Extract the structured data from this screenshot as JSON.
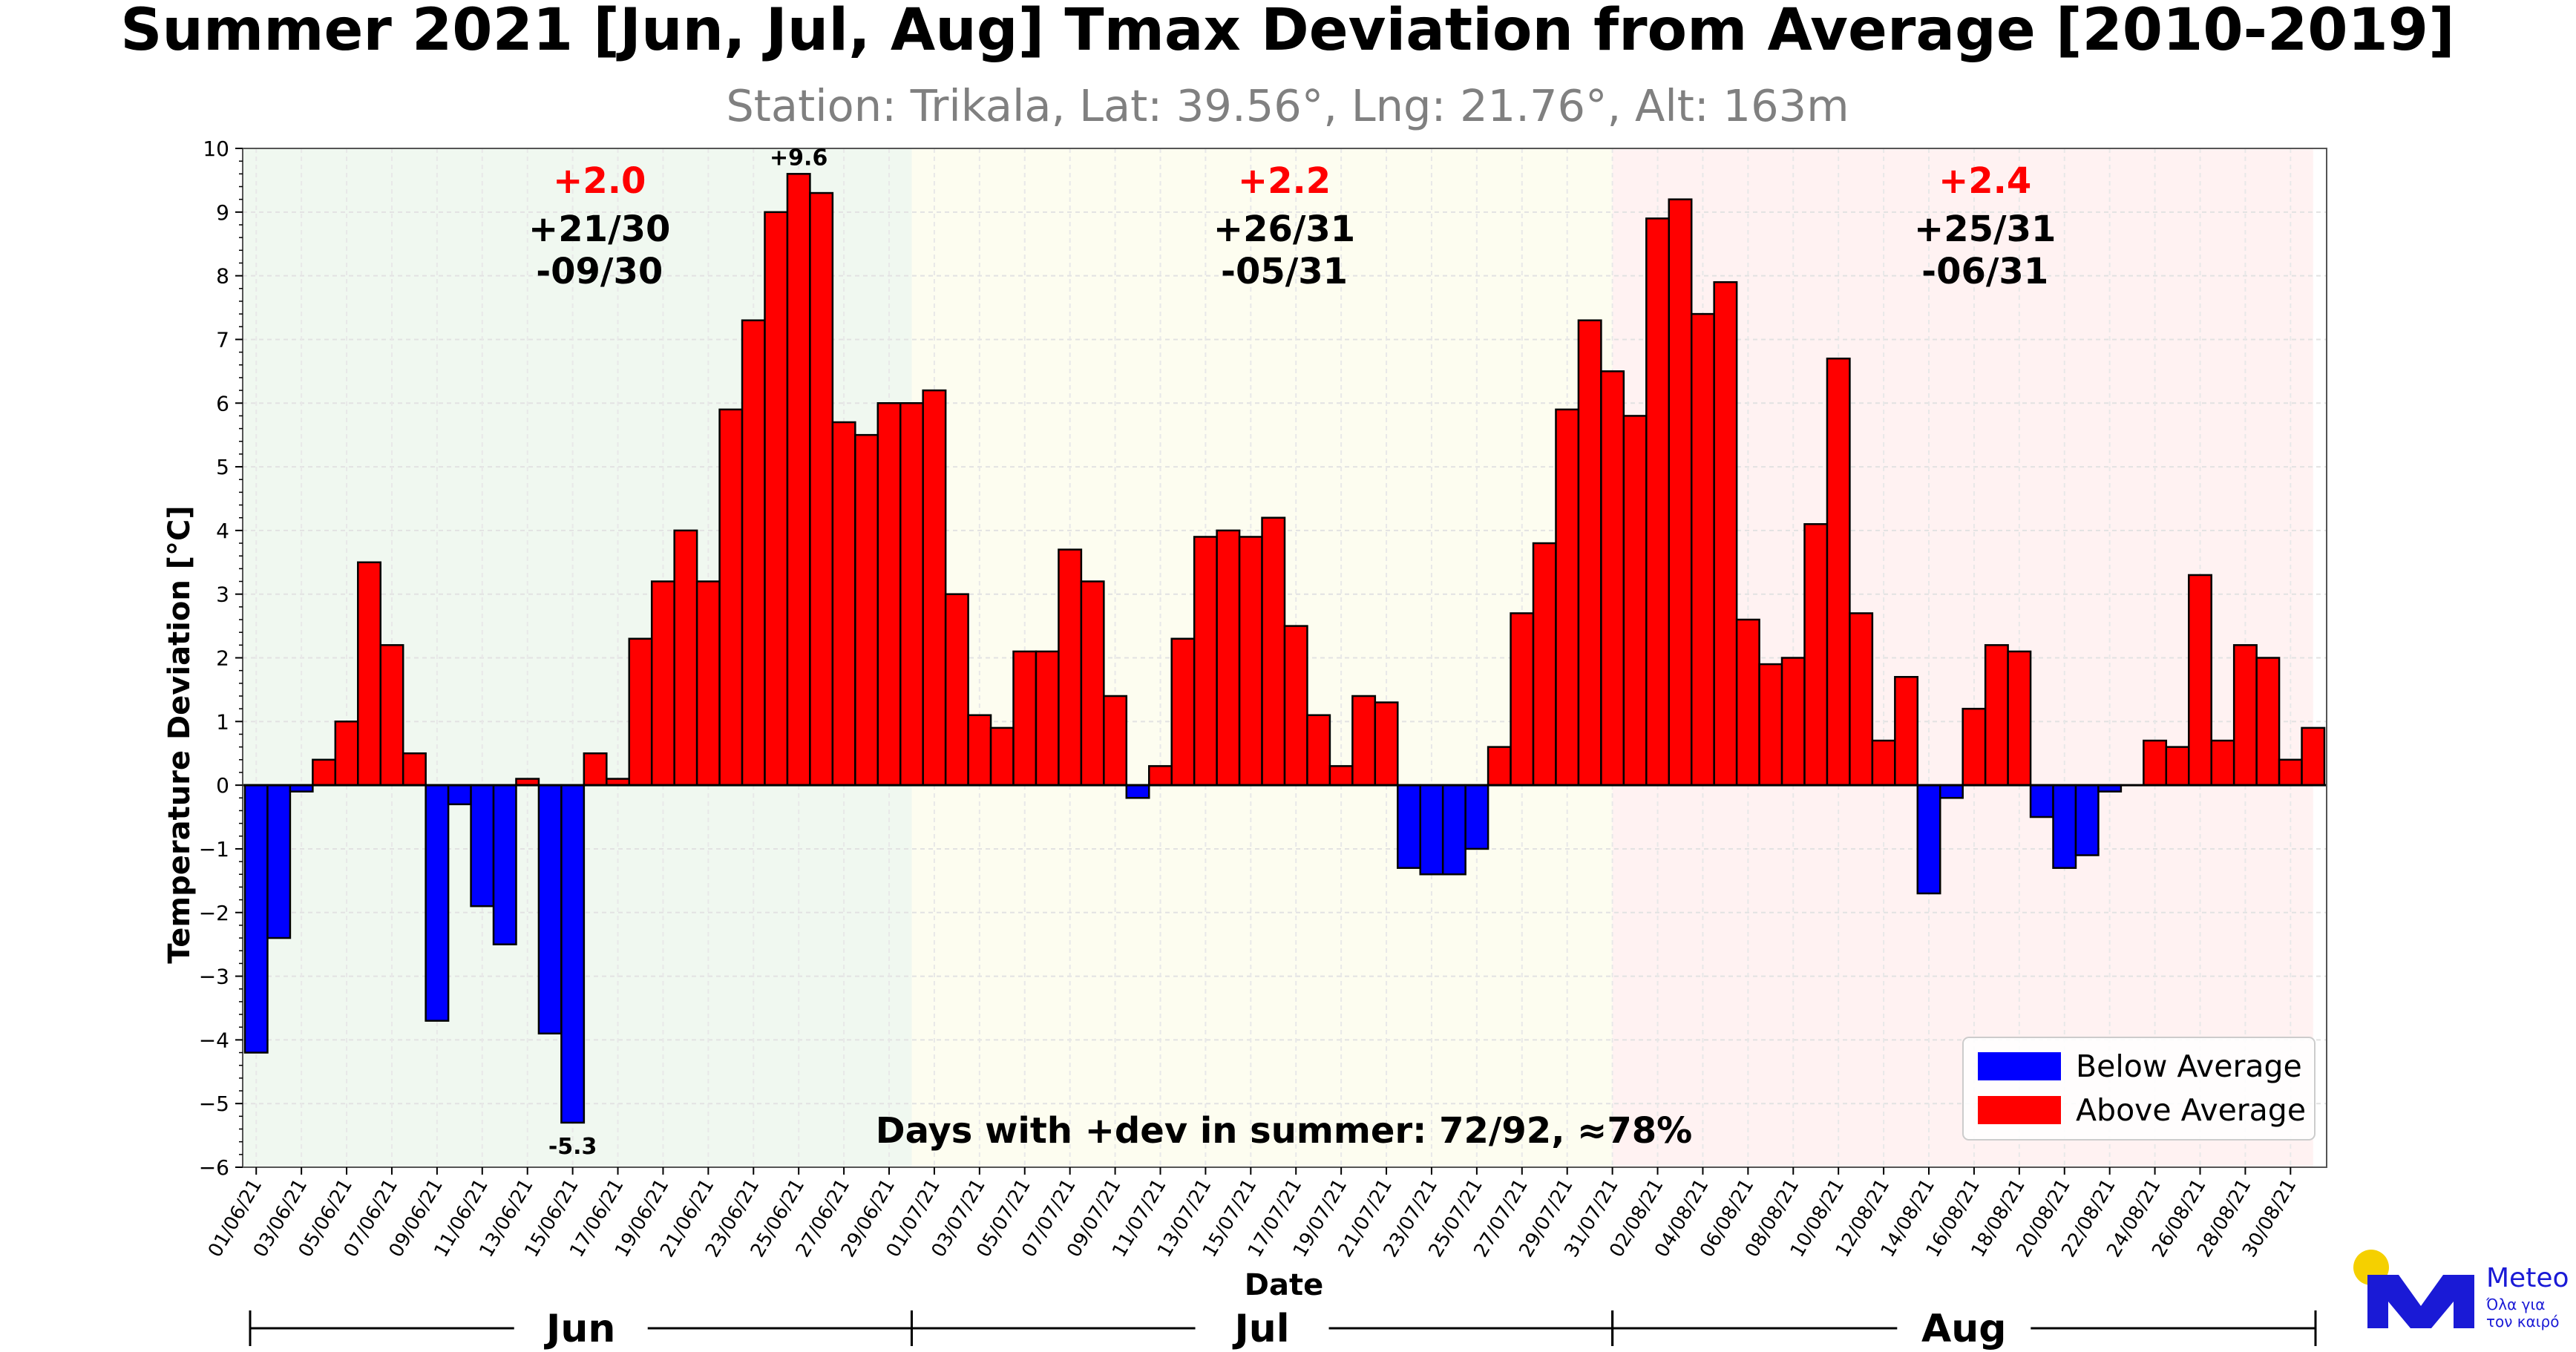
{
  "chart_data": {
    "type": "bar",
    "title": "Summer 2021 [Jun, Jul, Aug] Tmax Deviation from Average [2010-2019]",
    "subtitle": "Station: Trikala, Lat: 39.56°, Lng: 21.76°, Alt: 163m",
    "xlabel": "Date",
    "ylabel": "Temperature Deviation [°C]",
    "ylim": [
      -6,
      10
    ],
    "yticks": [
      -6,
      -5,
      -4,
      -3,
      -2,
      -1,
      0,
      1,
      2,
      3,
      4,
      5,
      6,
      7,
      8,
      9,
      10
    ],
    "grid": true,
    "dates": [
      "01/06/21",
      "02/06/21",
      "03/06/21",
      "04/06/21",
      "05/06/21",
      "06/06/21",
      "07/06/21",
      "08/06/21",
      "09/06/21",
      "10/06/21",
      "11/06/21",
      "12/06/21",
      "13/06/21",
      "14/06/21",
      "15/06/21",
      "16/06/21",
      "17/06/21",
      "18/06/21",
      "19/06/21",
      "20/06/21",
      "21/06/21",
      "22/06/21",
      "23/06/21",
      "24/06/21",
      "25/06/21",
      "26/06/21",
      "27/06/21",
      "28/06/21",
      "29/06/21",
      "30/06/21",
      "01/07/21",
      "02/07/21",
      "03/07/21",
      "04/07/21",
      "05/07/21",
      "06/07/21",
      "07/07/21",
      "08/07/21",
      "09/07/21",
      "10/07/21",
      "11/07/21",
      "12/07/21",
      "13/07/21",
      "14/07/21",
      "15/07/21",
      "16/07/21",
      "17/07/21",
      "18/07/21",
      "19/07/21",
      "20/07/21",
      "21/07/21",
      "22/07/21",
      "23/07/21",
      "24/07/21",
      "25/07/21",
      "26/07/21",
      "27/07/21",
      "28/07/21",
      "29/07/21",
      "30/07/21",
      "31/07/21",
      "01/08/21",
      "02/08/21",
      "03/08/21",
      "04/08/21",
      "05/08/21",
      "06/08/21",
      "07/08/21",
      "08/08/21",
      "09/08/21",
      "10/08/21",
      "11/08/21",
      "12/08/21",
      "13/08/21",
      "14/08/21",
      "15/08/21",
      "16/08/21",
      "17/08/21",
      "18/08/21",
      "19/08/21",
      "20/08/21",
      "21/08/21",
      "22/08/21",
      "23/08/21",
      "24/08/21",
      "25/08/21",
      "26/08/21",
      "27/08/21",
      "28/08/21",
      "29/08/21",
      "30/08/21",
      "31/08/21"
    ],
    "tick_labels": [
      "01/06/21",
      "03/06/21",
      "05/06/21",
      "07/06/21",
      "09/06/21",
      "11/06/21",
      "13/06/21",
      "15/06/21",
      "17/06/21",
      "19/06/21",
      "21/06/21",
      "23/06/21",
      "25/06/21",
      "27/06/21",
      "29/06/21",
      "01/07/21",
      "03/07/21",
      "05/07/21",
      "07/07/21",
      "09/07/21",
      "11/07/21",
      "13/07/21",
      "15/07/21",
      "17/07/21",
      "19/07/21",
      "21/07/21",
      "23/07/21",
      "25/07/21",
      "27/07/21",
      "29/07/21",
      "31/07/21",
      "02/08/21",
      "04/08/21",
      "06/08/21",
      "08/08/21",
      "10/08/21",
      "12/08/21",
      "14/08/21",
      "16/08/21",
      "18/08/21",
      "20/08/21",
      "22/08/21",
      "24/08/21",
      "26/08/21",
      "28/08/21",
      "30/08/21"
    ],
    "values": [
      -4.2,
      -2.4,
      -0.1,
      0.4,
      1.0,
      3.5,
      2.2,
      0.5,
      -3.7,
      -0.3,
      -1.9,
      -2.5,
      0.1,
      -3.9,
      -5.3,
      0.5,
      0.1,
      2.3,
      3.2,
      4.0,
      3.2,
      5.9,
      7.3,
      9.0,
      9.6,
      9.3,
      5.7,
      5.5,
      6.0,
      6.0,
      6.2,
      3.0,
      1.1,
      0.9,
      2.1,
      2.1,
      3.7,
      3.2,
      1.4,
      -0.2,
      0.3,
      2.3,
      3.9,
      4.0,
      3.9,
      4.2,
      2.5,
      1.1,
      0.3,
      1.4,
      1.3,
      -1.3,
      -1.4,
      -1.4,
      -1.0,
      0.6,
      2.7,
      3.8,
      5.9,
      7.3,
      6.5,
      5.8,
      8.9,
      9.2,
      7.4,
      7.9,
      2.6,
      1.9,
      2.0,
      4.1,
      6.7,
      2.7,
      0.7,
      1.7,
      -1.7,
      -0.2,
      1.2,
      2.2,
      2.1,
      -0.5,
      -1.3,
      -1.1,
      -0.1,
      0.0,
      0.7,
      0.6,
      3.3,
      0.7,
      2.2,
      2.0,
      0.4,
      0.9
    ],
    "colors": {
      "above": "#ff0000",
      "below": "#0000ff",
      "title_gray": "#808080",
      "avg_red": "#ff0000"
    },
    "extremes": [
      {
        "label": "+9.6",
        "value": 9.6,
        "date": "25/06/21"
      },
      {
        "label": "-5.3",
        "value": -5.3,
        "date": "15/06/21"
      }
    ],
    "months": [
      {
        "name": "Jun",
        "avg": "+2.0",
        "plus": "+21/30",
        "minus": "-09/30",
        "start": 0,
        "end": 30,
        "shade": "#f0f8f0"
      },
      {
        "name": "Jul",
        "avg": "+2.2",
        "plus": "+26/31",
        "minus": "-05/31",
        "start": 30,
        "end": 61,
        "shade": "#fdfdf0"
      },
      {
        "name": "Aug",
        "avg": "+2.4",
        "plus": "+25/31",
        "minus": "-06/31",
        "start": 61,
        "end": 92,
        "shade": "#fff2f2"
      }
    ],
    "summary": "Days with +dev in summer: 72/92, ≈78%",
    "legend": {
      "position": "lower-right",
      "items": [
        {
          "name": "Below Average",
          "color": "#0000ff"
        },
        {
          "name": "Above Average",
          "color": "#ff0000"
        }
      ]
    }
  },
  "logo": {
    "name": "Meteo",
    "tagline_1": "Όλα για",
    "tagline_2": "τον καιρό",
    "color": "#1a1ad6",
    "sun_color": "#f5d000"
  }
}
